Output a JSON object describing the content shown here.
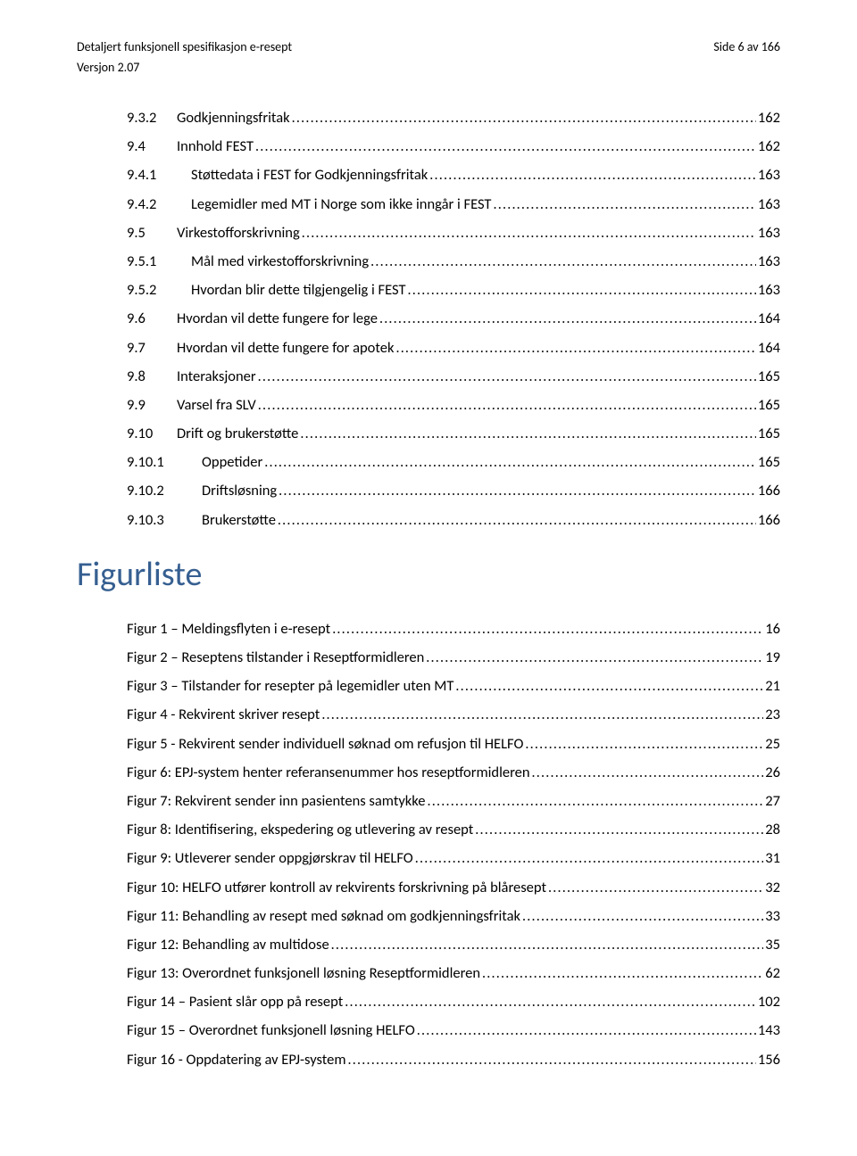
{
  "header": {
    "title": "Detaljert funksjonell spesifikasjon e-resept",
    "page_label": "Side 6 av 166",
    "version": "Versjon  2.07"
  },
  "section_title": "Figurliste",
  "toc": [
    {
      "indent": 0,
      "num": "9.3.2",
      "label": "Godkjenningsfritak",
      "page": "162"
    },
    {
      "indent": 0,
      "num": "9.4",
      "label": "Innhold FEST",
      "page": "162"
    },
    {
      "indent": 1,
      "num": "9.4.1",
      "label": "Støttedata i FEST for Godkjenningsfritak",
      "page": "163"
    },
    {
      "indent": 1,
      "num": "9.4.2",
      "label": "Legemidler med MT i Norge som ikke inngår i FEST",
      "page": "163"
    },
    {
      "indent": 0,
      "num": "9.5",
      "label": "Virkestofforskrivning",
      "page": "163"
    },
    {
      "indent": 1,
      "num": "9.5.1",
      "label": "Mål med virkestofforskrivning",
      "page": "163"
    },
    {
      "indent": 1,
      "num": "9.5.2",
      "label": "Hvordan blir dette tilgjengelig i FEST",
      "page": "163"
    },
    {
      "indent": 0,
      "num": "9.6",
      "label": "Hvordan vil dette fungere for lege",
      "page": "164"
    },
    {
      "indent": 0,
      "num": "9.7",
      "label": "Hvordan vil dette fungere for apotek",
      "page": "164"
    },
    {
      "indent": 0,
      "num": "9.8",
      "label": "Interaksjoner",
      "page": "165"
    },
    {
      "indent": 0,
      "num": "9.9",
      "label": "Varsel fra SLV",
      "page": "165"
    },
    {
      "indent": 0,
      "num": "9.10",
      "label": "Drift og brukerstøtte",
      "page": "165"
    },
    {
      "indent": 2,
      "num": "9.10.1",
      "label": "Oppetider",
      "page": "165"
    },
    {
      "indent": 2,
      "num": "9.10.2",
      "label": "Driftsløsning",
      "page": "166"
    },
    {
      "indent": 2,
      "num": "9.10.3",
      "label": "Brukerstøtte",
      "page": "166"
    }
  ],
  "figures": [
    {
      "label": "Figur 1 – Meldingsflyten i e-resept",
      "page": "16"
    },
    {
      "label": "Figur 2 – Reseptens tilstander i Reseptformidleren",
      "page": "19"
    },
    {
      "label": "Figur 3 – Tilstander for resepter på legemidler uten MT",
      "page": "21"
    },
    {
      "label": "Figur 4 - Rekvirent skriver resept",
      "page": "23"
    },
    {
      "label": "Figur 5 - Rekvirent sender individuell søknad om refusjon til HELFO",
      "page": "25"
    },
    {
      "label": "Figur 6: EPJ-system henter referansenummer hos reseptformidleren",
      "page": "26"
    },
    {
      "label": "Figur 7: Rekvirent sender inn pasientens samtykke",
      "page": "27"
    },
    {
      "label": "Figur 8: Identifisering, ekspedering og utlevering av resept",
      "page": "28"
    },
    {
      "label": "Figur 9: Utleverer sender oppgjørskrav til HELFO",
      "page": "31"
    },
    {
      "label": "Figur 10: HELFO utfører kontroll av rekvirents forskrivning på blåresept",
      "page": "32"
    },
    {
      "label": "Figur 11: Behandling av resept med søknad om godkjenningsfritak",
      "page": "33"
    },
    {
      "label": "Figur 12: Behandling av multidose",
      "page": "35"
    },
    {
      "label": "Figur 13: Overordnet funksjonell løsning Reseptformidleren",
      "page": "62"
    },
    {
      "label": "Figur 14 – Pasient slår opp på resept",
      "page": "102"
    },
    {
      "label": "Figur 15 – Overordnet funksjonell løsning HELFO",
      "page": "143"
    },
    {
      "label": "Figur 16 - Oppdatering av EPJ-system",
      "page": "156"
    }
  ]
}
